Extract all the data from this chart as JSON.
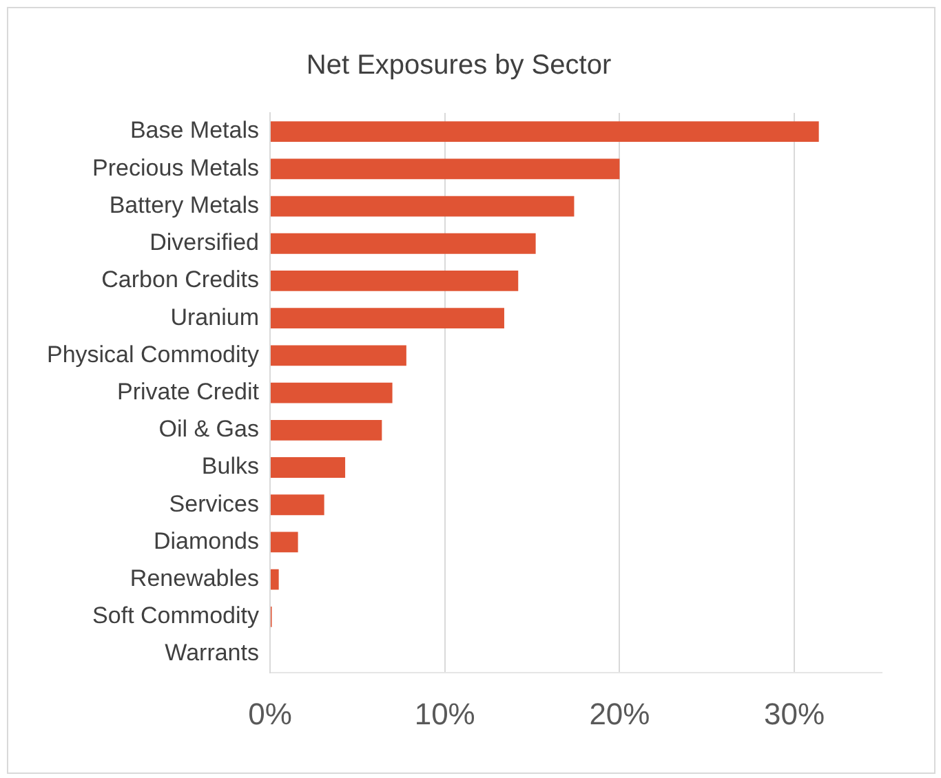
{
  "chart_data": {
    "type": "bar",
    "orientation": "horizontal",
    "title": "Net Exposures by Sector",
    "categories": [
      "Base Metals",
      "Precious Metals",
      "Battery Metals",
      "Diversified",
      "Carbon Credits",
      "Uranium",
      "Physical Commodity",
      "Private Credit",
      "Oil & Gas",
      "Bulks",
      "Services",
      "Diamonds",
      "Renewables",
      "Soft Commodity",
      "Warrants"
    ],
    "values": [
      31.4,
      20.0,
      17.4,
      15.2,
      14.2,
      13.4,
      7.8,
      7.0,
      6.4,
      4.3,
      3.1,
      1.6,
      0.5,
      0.1,
      0
    ],
    "color": "#e05434",
    "xlim": [
      0,
      35
    ],
    "xticks": [
      {
        "value": 0,
        "label": "0%"
      },
      {
        "value": 10,
        "label": "10%"
      },
      {
        "value": 20,
        "label": "20%"
      },
      {
        "value": 30,
        "label": "30%"
      }
    ],
    "grid": "x",
    "legend": false
  }
}
